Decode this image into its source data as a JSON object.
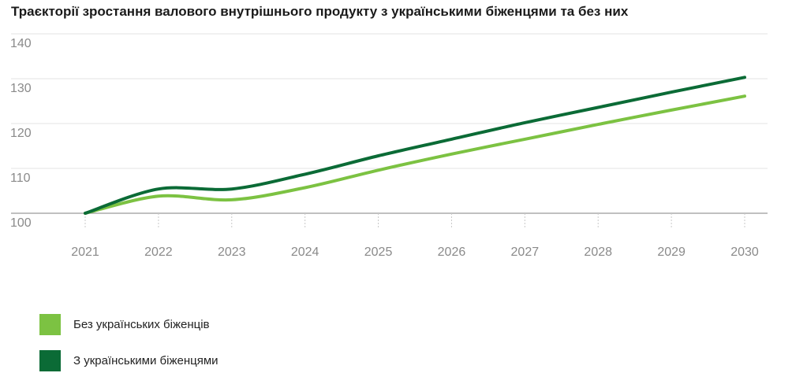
{
  "chart_data": {
    "type": "line",
    "title": "Траєкторії зростання валового внутрішнього продукту з українськими біженцями та без них",
    "xlabel": "",
    "ylabel": "",
    "x": [
      "2021",
      "2022",
      "2023",
      "2024",
      "2025",
      "2026",
      "2027",
      "2028",
      "2029",
      "2030"
    ],
    "y_ticks": [
      "100",
      "110",
      "120",
      "130",
      "140"
    ],
    "ylim": [
      100,
      140
    ],
    "grid": true,
    "legend_position": "bottom-left",
    "series": [
      {
        "name": "Без українських біженців",
        "color": "#7cc242",
        "values": [
          100.0,
          103.8,
          103.0,
          105.7,
          109.6,
          113.2,
          116.5,
          119.8,
          123.0,
          126.1
        ]
      },
      {
        "name": "З українськими біженцями",
        "color": "#0b6b36",
        "values": [
          100.0,
          105.4,
          105.4,
          108.7,
          112.8,
          116.5,
          120.2,
          123.6,
          127.0,
          130.3
        ]
      }
    ]
  }
}
